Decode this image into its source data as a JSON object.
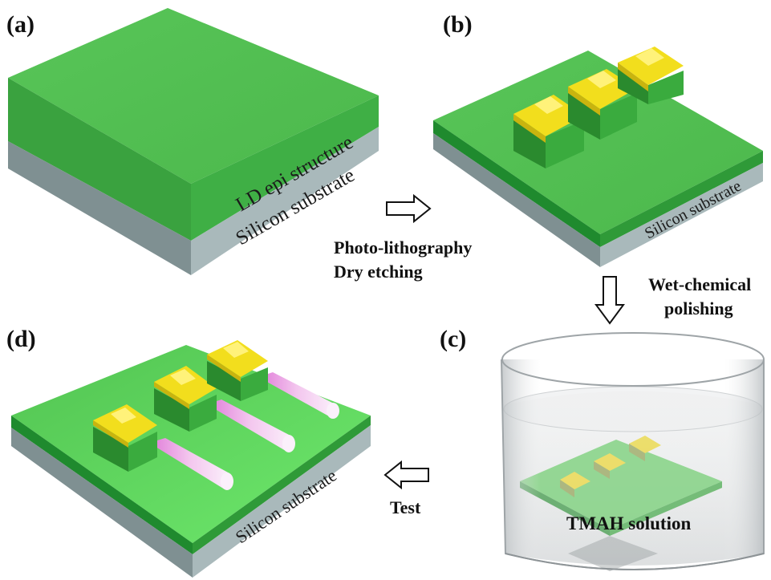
{
  "panels": {
    "a": "(a)",
    "b": "(b)",
    "c": "(c)",
    "d": "(d)"
  },
  "slab_labels": {
    "epi": "LD epi structure",
    "substrate": "Silicon substrate"
  },
  "steps": {
    "lithography_line1": "Photo-lithography",
    "lithography_line2": "Dry etching",
    "polishing_line1": "Wet-chemical",
    "polishing_line2": "polishing",
    "test": "Test",
    "solution": "TMAH solution"
  },
  "colors": {
    "epi_green": "#4fc24f",
    "epi_side": "#2f9a38",
    "substrate_gray": "#a9b9bb",
    "gold": "#f2de1d",
    "beam": "#f4c8ef",
    "beaker": "#cfd3d6"
  }
}
